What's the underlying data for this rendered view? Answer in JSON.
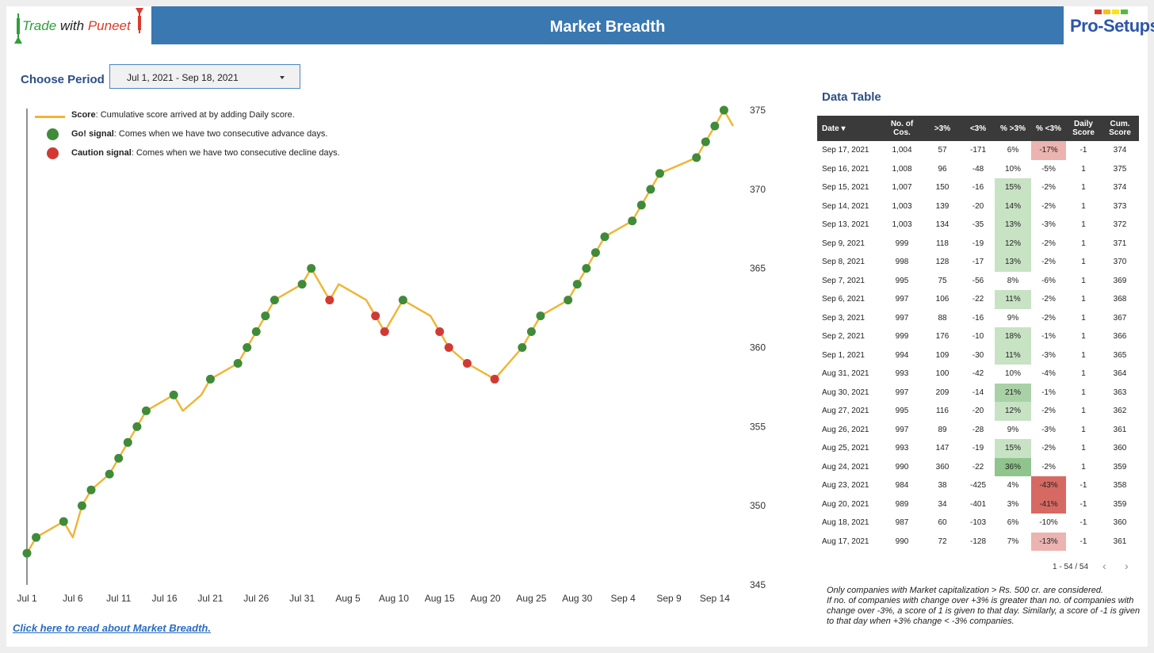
{
  "brand": {
    "left_logo": {
      "part1": "Trade ",
      "part2": "with ",
      "part3": "Puneet"
    },
    "right_logo": "Pro-Setups",
    "right_bar_colors": [
      "#d93b2a",
      "#f6c21a",
      "#f6e51a",
      "#55b947"
    ]
  },
  "header": {
    "title": "Market Breadth"
  },
  "period": {
    "label": "Choose Period",
    "value": "Jul 1, 2021 - Sep 18, 2021"
  },
  "legend": [
    {
      "name": "Score",
      "text": ": Cumulative score arrived at by adding Daily score."
    },
    {
      "name": "Go! signal",
      "text": ": Comes when we have two consecutive advance days."
    },
    {
      "name": "Caution signal",
      "text": ": Comes when we have two consecutive decline days."
    }
  ],
  "colors": {
    "line": "#f0b431",
    "go": "#3f8b3a",
    "caution": "#d13a34"
  },
  "chart_data": {
    "type": "line",
    "x_ticks": [
      "Jul 1",
      "Jul 6",
      "Jul 11",
      "Jul 16",
      "Jul 21",
      "Jul 26",
      "Jul 31",
      "Aug 5",
      "Aug 10",
      "Aug 15",
      "Aug 20",
      "Aug 25",
      "Aug 30",
      "Sep 4",
      "Sep 9",
      "Sep 14"
    ],
    "y_ticks": [
      345,
      350,
      355,
      360,
      365,
      370,
      375
    ],
    "ylim": [
      345,
      375
    ],
    "y_axis_side": "right",
    "series": [
      {
        "name": "Score",
        "points": [
          {
            "x": "2021-07-01",
            "y": 347,
            "signal": "go"
          },
          {
            "x": "2021-07-02",
            "y": 348,
            "signal": "go"
          },
          {
            "x": "2021-07-05",
            "y": 349,
            "signal": "go"
          },
          {
            "x": "2021-07-06",
            "y": 348,
            "signal": ""
          },
          {
            "x": "2021-07-07",
            "y": 350,
            "signal": "go"
          },
          {
            "x": "2021-07-08",
            "y": 351,
            "signal": "go"
          },
          {
            "x": "2021-07-10",
            "y": 352,
            "signal": "go"
          },
          {
            "x": "2021-07-11",
            "y": 353,
            "signal": "go"
          },
          {
            "x": "2021-07-12",
            "y": 354,
            "signal": "go"
          },
          {
            "x": "2021-07-13",
            "y": 355,
            "signal": "go"
          },
          {
            "x": "2021-07-14",
            "y": 356,
            "signal": "go"
          },
          {
            "x": "2021-07-17",
            "y": 357,
            "signal": "go"
          },
          {
            "x": "2021-07-18",
            "y": 356,
            "signal": ""
          },
          {
            "x": "2021-07-20",
            "y": 357,
            "signal": ""
          },
          {
            "x": "2021-07-21",
            "y": 358,
            "signal": "go"
          },
          {
            "x": "2021-07-24",
            "y": 359,
            "signal": "go"
          },
          {
            "x": "2021-07-25",
            "y": 360,
            "signal": "go"
          },
          {
            "x": "2021-07-26",
            "y": 361,
            "signal": "go"
          },
          {
            "x": "2021-07-27",
            "y": 362,
            "signal": "go"
          },
          {
            "x": "2021-07-28",
            "y": 363,
            "signal": "go"
          },
          {
            "x": "2021-07-31",
            "y": 364,
            "signal": "go"
          },
          {
            "x": "2021-08-01",
            "y": 365,
            "signal": "go"
          },
          {
            "x": "2021-08-03",
            "y": 363,
            "signal": "caution"
          },
          {
            "x": "2021-08-04",
            "y": 364,
            "signal": ""
          },
          {
            "x": "2021-08-07",
            "y": 363,
            "signal": ""
          },
          {
            "x": "2021-08-08",
            "y": 362,
            "signal": "caution"
          },
          {
            "x": "2021-08-09",
            "y": 361,
            "signal": "caution"
          },
          {
            "x": "2021-08-11",
            "y": 363,
            "signal": "go"
          },
          {
            "x": "2021-08-14",
            "y": 362,
            "signal": ""
          },
          {
            "x": "2021-08-15",
            "y": 361,
            "signal": "caution"
          },
          {
            "x": "2021-08-16",
            "y": 360,
            "signal": "caution"
          },
          {
            "x": "2021-08-18",
            "y": 359,
            "signal": "caution"
          },
          {
            "x": "2021-08-21",
            "y": 358,
            "signal": "caution"
          },
          {
            "x": "2021-08-24",
            "y": 360,
            "signal": "go"
          },
          {
            "x": "2021-08-25",
            "y": 361,
            "signal": "go"
          },
          {
            "x": "2021-08-26",
            "y": 362,
            "signal": "go"
          },
          {
            "x": "2021-08-29",
            "y": 363,
            "signal": "go"
          },
          {
            "x": "2021-08-30",
            "y": 364,
            "signal": "go"
          },
          {
            "x": "2021-08-31",
            "y": 365,
            "signal": "go"
          },
          {
            "x": "2021-09-01",
            "y": 366,
            "signal": "go"
          },
          {
            "x": "2021-09-02",
            "y": 367,
            "signal": "go"
          },
          {
            "x": "2021-09-05",
            "y": 368,
            "signal": "go"
          },
          {
            "x": "2021-09-06",
            "y": 369,
            "signal": "go"
          },
          {
            "x": "2021-09-07",
            "y": 370,
            "signal": "go"
          },
          {
            "x": "2021-09-08",
            "y": 371,
            "signal": "go"
          },
          {
            "x": "2021-09-12",
            "y": 372,
            "signal": "go"
          },
          {
            "x": "2021-09-13",
            "y": 373,
            "signal": "go"
          },
          {
            "x": "2021-09-14",
            "y": 374,
            "signal": "go"
          },
          {
            "x": "2021-09-15",
            "y": 375,
            "signal": "go"
          },
          {
            "x": "2021-09-16",
            "y": 374,
            "signal": ""
          }
        ]
      }
    ]
  },
  "data_table": {
    "title": "Data Table",
    "columns": [
      "Date",
      "No. of Cos.",
      ">3%",
      "<3%",
      "% >3%",
      "% <3%",
      "Daily Score",
      "Cum. Score"
    ],
    "rows": [
      {
        "date": "Sep 17, 2021",
        "cos": "1,004",
        "gt": "57",
        "lt": "-171",
        "pgt": "6%",
        "plt": "-17%",
        "daily": "-1",
        "cum": "374"
      },
      {
        "date": "Sep 16, 2021",
        "cos": "1,008",
        "gt": "96",
        "lt": "-48",
        "pgt": "10%",
        "plt": "-5%",
        "daily": "1",
        "cum": "375"
      },
      {
        "date": "Sep 15, 2021",
        "cos": "1,007",
        "gt": "150",
        "lt": "-16",
        "pgt": "15%",
        "plt": "-2%",
        "daily": "1",
        "cum": "374"
      },
      {
        "date": "Sep 14, 2021",
        "cos": "1,003",
        "gt": "139",
        "lt": "-20",
        "pgt": "14%",
        "plt": "-2%",
        "daily": "1",
        "cum": "373"
      },
      {
        "date": "Sep 13, 2021",
        "cos": "1,003",
        "gt": "134",
        "lt": "-35",
        "pgt": "13%",
        "plt": "-3%",
        "daily": "1",
        "cum": "372"
      },
      {
        "date": "Sep 9, 2021",
        "cos": "999",
        "gt": "118",
        "lt": "-19",
        "pgt": "12%",
        "plt": "-2%",
        "daily": "1",
        "cum": "371"
      },
      {
        "date": "Sep 8, 2021",
        "cos": "998",
        "gt": "128",
        "lt": "-17",
        "pgt": "13%",
        "plt": "-2%",
        "daily": "1",
        "cum": "370"
      },
      {
        "date": "Sep 7, 2021",
        "cos": "995",
        "gt": "75",
        "lt": "-56",
        "pgt": "8%",
        "plt": "-6%",
        "daily": "1",
        "cum": "369"
      },
      {
        "date": "Sep 6, 2021",
        "cos": "997",
        "gt": "106",
        "lt": "-22",
        "pgt": "11%",
        "plt": "-2%",
        "daily": "1",
        "cum": "368"
      },
      {
        "date": "Sep 3, 2021",
        "cos": "997",
        "gt": "88",
        "lt": "-16",
        "pgt": "9%",
        "plt": "-2%",
        "daily": "1",
        "cum": "367"
      },
      {
        "date": "Sep 2, 2021",
        "cos": "999",
        "gt": "176",
        "lt": "-10",
        "pgt": "18%",
        "plt": "-1%",
        "daily": "1",
        "cum": "366"
      },
      {
        "date": "Sep 1, 2021",
        "cos": "994",
        "gt": "109",
        "lt": "-30",
        "pgt": "11%",
        "plt": "-3%",
        "daily": "1",
        "cum": "365"
      },
      {
        "date": "Aug 31, 2021",
        "cos": "993",
        "gt": "100",
        "lt": "-42",
        "pgt": "10%",
        "plt": "-4%",
        "daily": "1",
        "cum": "364"
      },
      {
        "date": "Aug 30, 2021",
        "cos": "997",
        "gt": "209",
        "lt": "-14",
        "pgt": "21%",
        "plt": "-1%",
        "daily": "1",
        "cum": "363"
      },
      {
        "date": "Aug 27, 2021",
        "cos": "995",
        "gt": "116",
        "lt": "-20",
        "pgt": "12%",
        "plt": "-2%",
        "daily": "1",
        "cum": "362"
      },
      {
        "date": "Aug 26, 2021",
        "cos": "997",
        "gt": "89",
        "lt": "-28",
        "pgt": "9%",
        "plt": "-3%",
        "daily": "1",
        "cum": "361"
      },
      {
        "date": "Aug 25, 2021",
        "cos": "993",
        "gt": "147",
        "lt": "-19",
        "pgt": "15%",
        "plt": "-2%",
        "daily": "1",
        "cum": "360"
      },
      {
        "date": "Aug 24, 2021",
        "cos": "990",
        "gt": "360",
        "lt": "-22",
        "pgt": "36%",
        "plt": "-2%",
        "daily": "1",
        "cum": "359"
      },
      {
        "date": "Aug 23, 2021",
        "cos": "984",
        "gt": "38",
        "lt": "-425",
        "pgt": "4%",
        "plt": "-43%",
        "daily": "-1",
        "cum": "358"
      },
      {
        "date": "Aug 20, 2021",
        "cos": "989",
        "gt": "34",
        "lt": "-401",
        "pgt": "3%",
        "plt": "-41%",
        "daily": "-1",
        "cum": "359"
      },
      {
        "date": "Aug 18, 2021",
        "cos": "987",
        "gt": "60",
        "lt": "-103",
        "pgt": "6%",
        "plt": "-10%",
        "daily": "-1",
        "cum": "360"
      },
      {
        "date": "Aug 17, 2021",
        "cos": "990",
        "gt": "72",
        "lt": "-128",
        "pgt": "7%",
        "plt": "-13%",
        "daily": "-1",
        "cum": "361"
      }
    ],
    "pager": "1 - 54 / 54"
  },
  "link_text": "Click here to read about Market Breadth.",
  "note": [
    "Only companies with Market capitalization > Rs. 500 cr. are considered.",
    "If no. of companies with change over +3% is greater than no. of companies with change over -3%, a score of 1 is given to that day. Similarly, a score of -1 is given to that day when +3% change < -3% companies."
  ]
}
